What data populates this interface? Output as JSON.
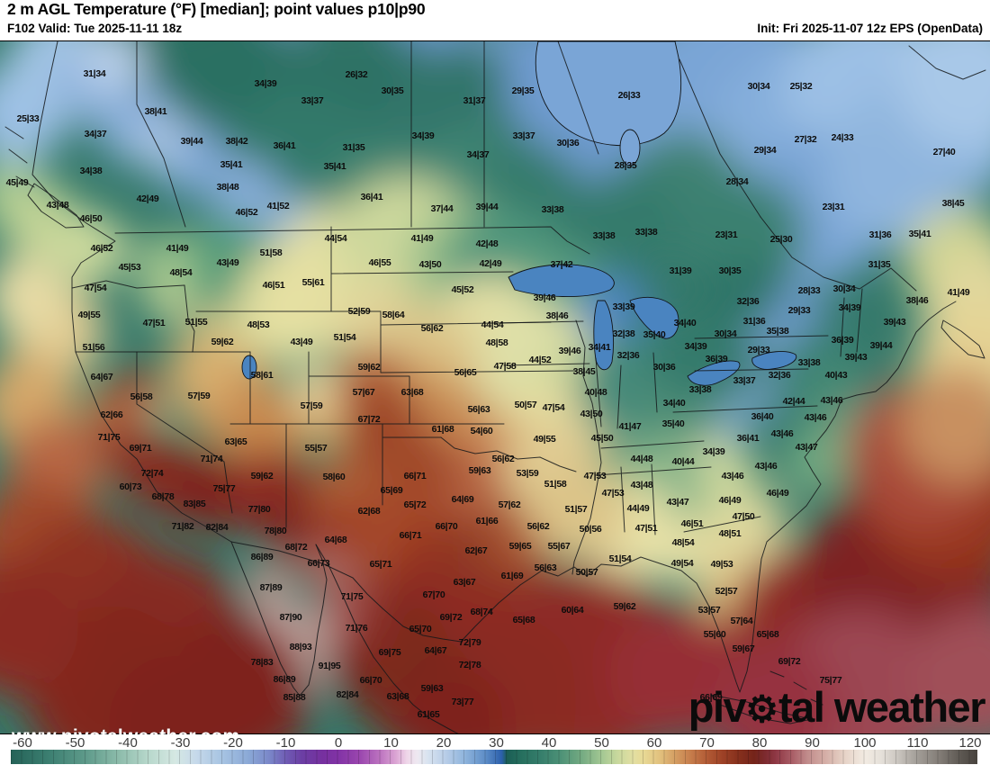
{
  "header": {
    "title": "2 m AGL Temperature (°F) [median]; point values p10|p90",
    "subtitle": "F102 Valid: Tue 2025-11-11 18z",
    "init": "Init: Fri 2025-11-07 12z EPS (OpenData)"
  },
  "watermark": {
    "site": "www.pivotalweather.com",
    "brand_prefix": "piv",
    "brand_icon": "⚙",
    "brand_suffix": "tal weather"
  },
  "colorbar": {
    "unit": "°F",
    "ticks": [
      -60,
      -50,
      -40,
      -30,
      -20,
      -10,
      0,
      10,
      20,
      30,
      40,
      50,
      60,
      70,
      80,
      90,
      100,
      110,
      120
    ],
    "stops": [
      [
        -62,
        "#256358"
      ],
      [
        -55,
        "#3c7f71"
      ],
      [
        -48,
        "#5e9a8a"
      ],
      [
        -42,
        "#8abaa9"
      ],
      [
        -36,
        "#b8d8cc"
      ],
      [
        -31,
        "#d5e8e3"
      ],
      [
        -27,
        "#c6d9ea"
      ],
      [
        -22,
        "#a6c3e2"
      ],
      [
        -17,
        "#8aa8d6"
      ],
      [
        -13,
        "#7a86c8"
      ],
      [
        -10,
        "#6f5cb4"
      ],
      [
        -7,
        "#6b3fa4"
      ],
      [
        -3,
        "#76309f"
      ],
      [
        0,
        "#8233a6"
      ],
      [
        4,
        "#9a46ae"
      ],
      [
        8,
        "#bd74c0"
      ],
      [
        11,
        "#dca6d4"
      ],
      [
        13,
        "#efd6e9"
      ],
      [
        15,
        "#eee9f1"
      ],
      [
        17,
        "#d8e3f0"
      ],
      [
        20,
        "#bcd0e9"
      ],
      [
        24,
        "#8fb4dc"
      ],
      [
        28,
        "#5c8cc6"
      ],
      [
        31,
        "#2c60ac"
      ],
      [
        32,
        "#1b5e55"
      ],
      [
        35,
        "#27705f"
      ],
      [
        38,
        "#347c6a"
      ],
      [
        42,
        "#4b9076"
      ],
      [
        46,
        "#72a981"
      ],
      [
        50,
        "#a3c793"
      ],
      [
        53,
        "#c8d89d"
      ],
      [
        56,
        "#e2dfa2"
      ],
      [
        58,
        "#e8d995"
      ],
      [
        61,
        "#e2c17e"
      ],
      [
        64,
        "#d49d62"
      ],
      [
        67,
        "#c67c4b"
      ],
      [
        70,
        "#b25b35"
      ],
      [
        73,
        "#9d4126"
      ],
      [
        76,
        "#86301d"
      ],
      [
        79,
        "#74241a"
      ],
      [
        81,
        "#7c2a2e"
      ],
      [
        83,
        "#8e3744"
      ],
      [
        86,
        "#a85b64"
      ],
      [
        89,
        "#c08a8a"
      ],
      [
        92,
        "#d2a9a2"
      ],
      [
        96,
        "#e6d2c6"
      ],
      [
        100,
        "#f2ebe2"
      ],
      [
        103,
        "#e6e1da"
      ],
      [
        106,
        "#cdc8c2"
      ],
      [
        110,
        "#a19c96"
      ],
      [
        114,
        "#847e78"
      ],
      [
        118,
        "#5e5953"
      ],
      [
        121,
        "#4a4540"
      ]
    ]
  },
  "map": {
    "stations": [
      [
        "31|34",
        105,
        82
      ],
      [
        "34|39",
        295,
        93
      ],
      [
        "33|37",
        347,
        112
      ],
      [
        "26|32",
        396,
        83
      ],
      [
        "30|35",
        436,
        101
      ],
      [
        "29|35",
        581,
        101
      ],
      [
        "31|37",
        527,
        112
      ],
      [
        "26|33",
        699,
        106
      ],
      [
        "30|34",
        843,
        96
      ],
      [
        "25|32",
        890,
        96
      ],
      [
        "27|32",
        895,
        155
      ],
      [
        "24|33",
        936,
        153
      ],
      [
        "29|34",
        850,
        167
      ],
      [
        "27|40",
        1049,
        169
      ],
      [
        "28|34",
        819,
        202
      ],
      [
        "23|31",
        926,
        230
      ],
      [
        "38|45",
        1059,
        226
      ],
      [
        "23|31",
        807,
        261
      ],
      [
        "25|30",
        868,
        266
      ],
      [
        "31|36",
        978,
        261
      ],
      [
        "35|41",
        1022,
        260
      ],
      [
        "31|35",
        977,
        294
      ],
      [
        "31|39",
        756,
        301
      ],
      [
        "30|35",
        811,
        301
      ],
      [
        "38|41",
        173,
        124
      ],
      [
        "25|33",
        31,
        132
      ],
      [
        "34|37",
        106,
        149
      ],
      [
        "39|44",
        213,
        157
      ],
      [
        "38|42",
        263,
        157
      ],
      [
        "36|41",
        316,
        162
      ],
      [
        "35|41",
        257,
        183
      ],
      [
        "34|38",
        101,
        190
      ],
      [
        "38|48",
        253,
        208
      ],
      [
        "45|49",
        19,
        203
      ],
      [
        "42|49",
        164,
        221
      ],
      [
        "46|52",
        274,
        236
      ],
      [
        "41|52",
        309,
        229
      ],
      [
        "43|48",
        64,
        228
      ],
      [
        "46|50",
        101,
        243
      ],
      [
        "34|39",
        470,
        151
      ],
      [
        "33|37",
        582,
        151
      ],
      [
        "30|36",
        631,
        159
      ],
      [
        "31|35",
        393,
        164
      ],
      [
        "28|35",
        695,
        184
      ],
      [
        "34|37",
        531,
        172
      ],
      [
        "35|41",
        372,
        185
      ],
      [
        "36|41",
        413,
        219
      ],
      [
        "37|44",
        491,
        232
      ],
      [
        "39|44",
        541,
        230
      ],
      [
        "33|38",
        614,
        233
      ],
      [
        "44|54",
        373,
        265
      ],
      [
        "41|49",
        469,
        265
      ],
      [
        "42|48",
        541,
        271
      ],
      [
        "33|38",
        671,
        262
      ],
      [
        "33|38",
        718,
        258
      ],
      [
        "46|55",
        422,
        292
      ],
      [
        "43|50",
        478,
        294
      ],
      [
        "42|49",
        545,
        293
      ],
      [
        "37|42",
        624,
        294
      ],
      [
        "46|52",
        113,
        276
      ],
      [
        "41|49",
        197,
        276
      ],
      [
        "45|53",
        144,
        297
      ],
      [
        "48|54",
        201,
        303
      ],
      [
        "43|49",
        253,
        292
      ],
      [
        "51|58",
        301,
        281
      ],
      [
        "47|54",
        106,
        320
      ],
      [
        "46|51",
        304,
        317
      ],
      [
        "55|61",
        348,
        314
      ],
      [
        "49|55",
        99,
        350
      ],
      [
        "47|51",
        171,
        359
      ],
      [
        "51|55",
        218,
        358
      ],
      [
        "48|53",
        287,
        361
      ],
      [
        "59|62",
        247,
        380
      ],
      [
        "43|49",
        335,
        380
      ],
      [
        "51|56",
        104,
        386
      ],
      [
        "64|67",
        113,
        419
      ],
      [
        "58|61",
        291,
        417
      ],
      [
        "56|58",
        157,
        441
      ],
      [
        "57|59",
        221,
        440
      ],
      [
        "57|59",
        346,
        451
      ],
      [
        "62|66",
        124,
        461
      ],
      [
        "71|75",
        121,
        486
      ],
      [
        "69|71",
        156,
        498
      ],
      [
        "63|65",
        262,
        491
      ],
      [
        "55|57",
        351,
        498
      ],
      [
        "71|74",
        235,
        510
      ],
      [
        "72|74",
        169,
        526
      ],
      [
        "59|62",
        291,
        529
      ],
      [
        "60|73",
        145,
        541
      ],
      [
        "75|77",
        249,
        543
      ],
      [
        "68|78",
        181,
        552
      ],
      [
        "83|85",
        216,
        560
      ],
      [
        "45|52",
        514,
        322
      ],
      [
        "39|46",
        605,
        331
      ],
      [
        "52|59",
        399,
        346
      ],
      [
        "58|64",
        437,
        350
      ],
      [
        "38|46",
        619,
        351
      ],
      [
        "56|62",
        480,
        365
      ],
      [
        "44|54",
        547,
        361
      ],
      [
        "33|39",
        693,
        341
      ],
      [
        "51|54",
        383,
        375
      ],
      [
        "48|58",
        552,
        381
      ],
      [
        "32|38",
        693,
        371
      ],
      [
        "39|46",
        633,
        390
      ],
      [
        "34|41",
        666,
        386
      ],
      [
        "32|36",
        698,
        395
      ],
      [
        "44|52",
        600,
        400
      ],
      [
        "59|62",
        410,
        408
      ],
      [
        "47|58",
        561,
        407
      ],
      [
        "56|65",
        517,
        414
      ],
      [
        "38|45",
        649,
        413
      ],
      [
        "57|67",
        404,
        436
      ],
      [
        "63|68",
        458,
        436
      ],
      [
        "40|48",
        662,
        436
      ],
      [
        "50|57",
        584,
        450
      ],
      [
        "56|63",
        532,
        455
      ],
      [
        "47|54",
        615,
        453
      ],
      [
        "43|50",
        657,
        460
      ],
      [
        "67|72",
        410,
        466
      ],
      [
        "41|47",
        700,
        474
      ],
      [
        "61|68",
        492,
        477
      ],
      [
        "54|60",
        535,
        479
      ],
      [
        "49|55",
        605,
        488
      ],
      [
        "45|50",
        669,
        487
      ],
      [
        "44|48",
        713,
        510
      ],
      [
        "56|62",
        559,
        510
      ],
      [
        "59|63",
        533,
        523
      ],
      [
        "53|59",
        586,
        526
      ],
      [
        "66|71",
        461,
        529
      ],
      [
        "47|53",
        661,
        529
      ],
      [
        "51|58",
        617,
        538
      ],
      [
        "43|48",
        713,
        539
      ],
      [
        "65|69",
        435,
        545
      ],
      [
        "47|53",
        681,
        548
      ],
      [
        "64|69",
        514,
        555
      ],
      [
        "58|60",
        371,
        530
      ],
      [
        "35|40",
        727,
        372
      ],
      [
        "28|33",
        899,
        323
      ],
      [
        "30|34",
        938,
        321
      ],
      [
        "41|49",
        1065,
        325
      ],
      [
        "38|46",
        1019,
        334
      ],
      [
        "32|36",
        831,
        335
      ],
      [
        "29|33",
        888,
        345
      ],
      [
        "34|39",
        944,
        342
      ],
      [
        "31|36",
        838,
        357
      ],
      [
        "39|43",
        994,
        358
      ],
      [
        "34|40",
        761,
        359
      ],
      [
        "30|34",
        806,
        371
      ],
      [
        "35|38",
        864,
        368
      ],
      [
        "34|39",
        773,
        385
      ],
      [
        "36|39",
        936,
        378
      ],
      [
        "39|44",
        979,
        384
      ],
      [
        "29|33",
        843,
        389
      ],
      [
        "39|43",
        951,
        397
      ],
      [
        "36|39",
        796,
        399
      ],
      [
        "30|36",
        738,
        408
      ],
      [
        "33|38",
        899,
        403
      ],
      [
        "32|36",
        866,
        417
      ],
      [
        "40|43",
        929,
        417
      ],
      [
        "33|37",
        827,
        423
      ],
      [
        "33|38",
        778,
        433
      ],
      [
        "34|40",
        749,
        448
      ],
      [
        "42|44",
        882,
        446
      ],
      [
        "43|46",
        924,
        445
      ],
      [
        "43|46",
        906,
        464
      ],
      [
        "35|40",
        748,
        471
      ],
      [
        "36|40",
        847,
        463
      ],
      [
        "36|41",
        831,
        487
      ],
      [
        "43|46",
        869,
        482
      ],
      [
        "43|47",
        896,
        497
      ],
      [
        "34|39",
        793,
        502
      ],
      [
        "40|44",
        759,
        513
      ],
      [
        "43|46",
        851,
        518
      ],
      [
        "43|46",
        814,
        529
      ],
      [
        "46|49",
        864,
        548
      ],
      [
        "43|47",
        753,
        558
      ],
      [
        "46|49",
        811,
        556
      ],
      [
        "77|80",
        288,
        566
      ],
      [
        "71|82",
        203,
        585
      ],
      [
        "82|84",
        241,
        586
      ],
      [
        "78|80",
        306,
        590
      ],
      [
        "68|72",
        329,
        608
      ],
      [
        "66|73",
        354,
        626
      ],
      [
        "86|89",
        291,
        619
      ],
      [
        "87|89",
        301,
        653
      ],
      [
        "87|90",
        323,
        686
      ],
      [
        "88|93",
        334,
        719
      ],
      [
        "78|83",
        291,
        736
      ],
      [
        "91|95",
        366,
        740
      ],
      [
        "86|89",
        316,
        755
      ],
      [
        "85|88",
        327,
        775
      ],
      [
        "62|68",
        410,
        568
      ],
      [
        "65|72",
        461,
        561
      ],
      [
        "57|62",
        566,
        561
      ],
      [
        "51|57",
        640,
        566
      ],
      [
        "44|49",
        709,
        565
      ],
      [
        "61|66",
        541,
        579
      ],
      [
        "56|62",
        598,
        585
      ],
      [
        "50|56",
        656,
        588
      ],
      [
        "47|51",
        718,
        587
      ],
      [
        "66|70",
        496,
        585
      ],
      [
        "66|71",
        456,
        595
      ],
      [
        "64|68",
        373,
        600
      ],
      [
        "62|67",
        529,
        612
      ],
      [
        "59|65",
        578,
        607
      ],
      [
        "55|67",
        621,
        607
      ],
      [
        "51|54",
        689,
        621
      ],
      [
        "65|71",
        423,
        627
      ],
      [
        "56|63",
        606,
        631
      ],
      [
        "50|57",
        652,
        636
      ],
      [
        "61|69",
        569,
        640
      ],
      [
        "63|67",
        516,
        647
      ],
      [
        "67|70",
        482,
        661
      ],
      [
        "71|75",
        391,
        663
      ],
      [
        "60|64",
        636,
        678
      ],
      [
        "59|62",
        694,
        674
      ],
      [
        "68|74",
        535,
        680
      ],
      [
        "69|72",
        501,
        686
      ],
      [
        "65|68",
        582,
        689
      ],
      [
        "71|76",
        396,
        698
      ],
      [
        "65|70",
        467,
        699
      ],
      [
        "72|79",
        522,
        714
      ],
      [
        "69|75",
        433,
        725
      ],
      [
        "64|67",
        484,
        723
      ],
      [
        "72|78",
        522,
        739
      ],
      [
        "66|70",
        412,
        756
      ],
      [
        "59|63",
        480,
        765
      ],
      [
        "82|84",
        386,
        772
      ],
      [
        "63|68",
        442,
        774
      ],
      [
        "73|77",
        514,
        780
      ],
      [
        "61|65",
        476,
        794
      ],
      [
        "47|50",
        826,
        574
      ],
      [
        "46|51",
        769,
        582
      ],
      [
        "48|51",
        811,
        593
      ],
      [
        "48|54",
        759,
        603
      ],
      [
        "49|54",
        758,
        626
      ],
      [
        "49|53",
        802,
        627
      ],
      [
        "52|57",
        807,
        657
      ],
      [
        "53|57",
        788,
        678
      ],
      [
        "57|64",
        824,
        690
      ],
      [
        "55|60",
        794,
        705
      ],
      [
        "65|68",
        853,
        705
      ],
      [
        "59|67",
        826,
        721
      ],
      [
        "69|72",
        877,
        735
      ],
      [
        "75|77",
        923,
        756
      ],
      [
        "66|69",
        790,
        775
      ]
    ]
  }
}
